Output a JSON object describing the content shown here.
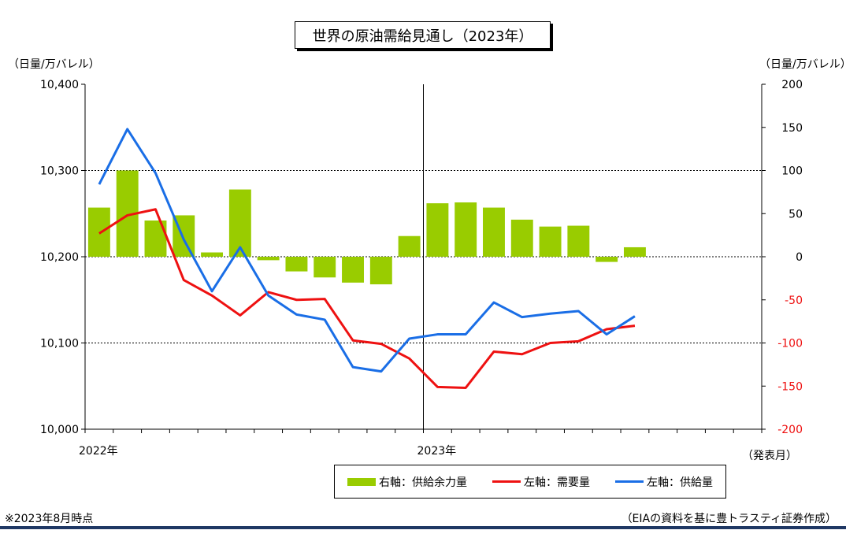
{
  "title": "世界の原油需給見通し（2023年）",
  "left_unit": "（日量/万バレル）",
  "right_unit": "（日量/万バレル）",
  "x_unit": "（発表月）",
  "footnote_left": "※2023年8月時点",
  "footnote_right": "（EIAの資料を基に豊トラスティ証券作成）",
  "colors": {
    "bar": "#99cc00",
    "demand": "#ee1111",
    "supply": "#1a6ee6",
    "divider": "#1f3864"
  },
  "legend": [
    {
      "label": "右軸：供給余力量",
      "kind": "bar",
      "color": "#99cc00"
    },
    {
      "label": "左軸：需要量",
      "kind": "line",
      "color": "#ee1111"
    },
    {
      "label": "左軸：供給量",
      "kind": "line",
      "color": "#1a6ee6"
    }
  ],
  "chart_data": {
    "type": "bar+line",
    "x_tick_labels": [
      "2022年",
      "2023年"
    ],
    "y_left": {
      "range": [
        10000,
        10400
      ],
      "ticks": [
        "10,000",
        "10,100",
        "10,200",
        "10,300",
        "10,400"
      ],
      "tick_values": [
        10000,
        10100,
        10200,
        10300,
        10400
      ]
    },
    "y_right": {
      "range": [
        -200,
        200
      ],
      "ticks": [
        "-200",
        "-150",
        "-100",
        "-50",
        "0",
        "50",
        "100",
        "150",
        "200"
      ],
      "tick_values": [
        -200,
        -150,
        -100,
        -50,
        0,
        50,
        100,
        150,
        200
      ]
    },
    "months": 24,
    "series": [
      {
        "name": "右軸：供給余力量",
        "axis": "right",
        "kind": "bar",
        "values": [
          57,
          100,
          42,
          48,
          5,
          78,
          -4,
          -17,
          -24,
          -30,
          -32,
          24,
          62,
          63,
          57,
          43,
          35,
          36,
          -6,
          11
        ]
      },
      {
        "name": "左軸：需要量",
        "axis": "left",
        "kind": "line",
        "values": [
          10227,
          10248,
          10255,
          10173,
          10155,
          10132,
          10159,
          10150,
          10151,
          10103,
          10099,
          10082,
          10049,
          10048,
          10090,
          10087,
          10100,
          10102,
          10116,
          10120
        ]
      },
      {
        "name": "左軸：供給量",
        "axis": "left",
        "kind": "line",
        "values": [
          10284,
          10348,
          10297,
          10220,
          10160,
          10211,
          10155,
          10133,
          10127,
          10072,
          10067,
          10105,
          10110,
          10110,
          10147,
          10130,
          10134,
          10137,
          10110,
          10131
        ]
      }
    ]
  }
}
